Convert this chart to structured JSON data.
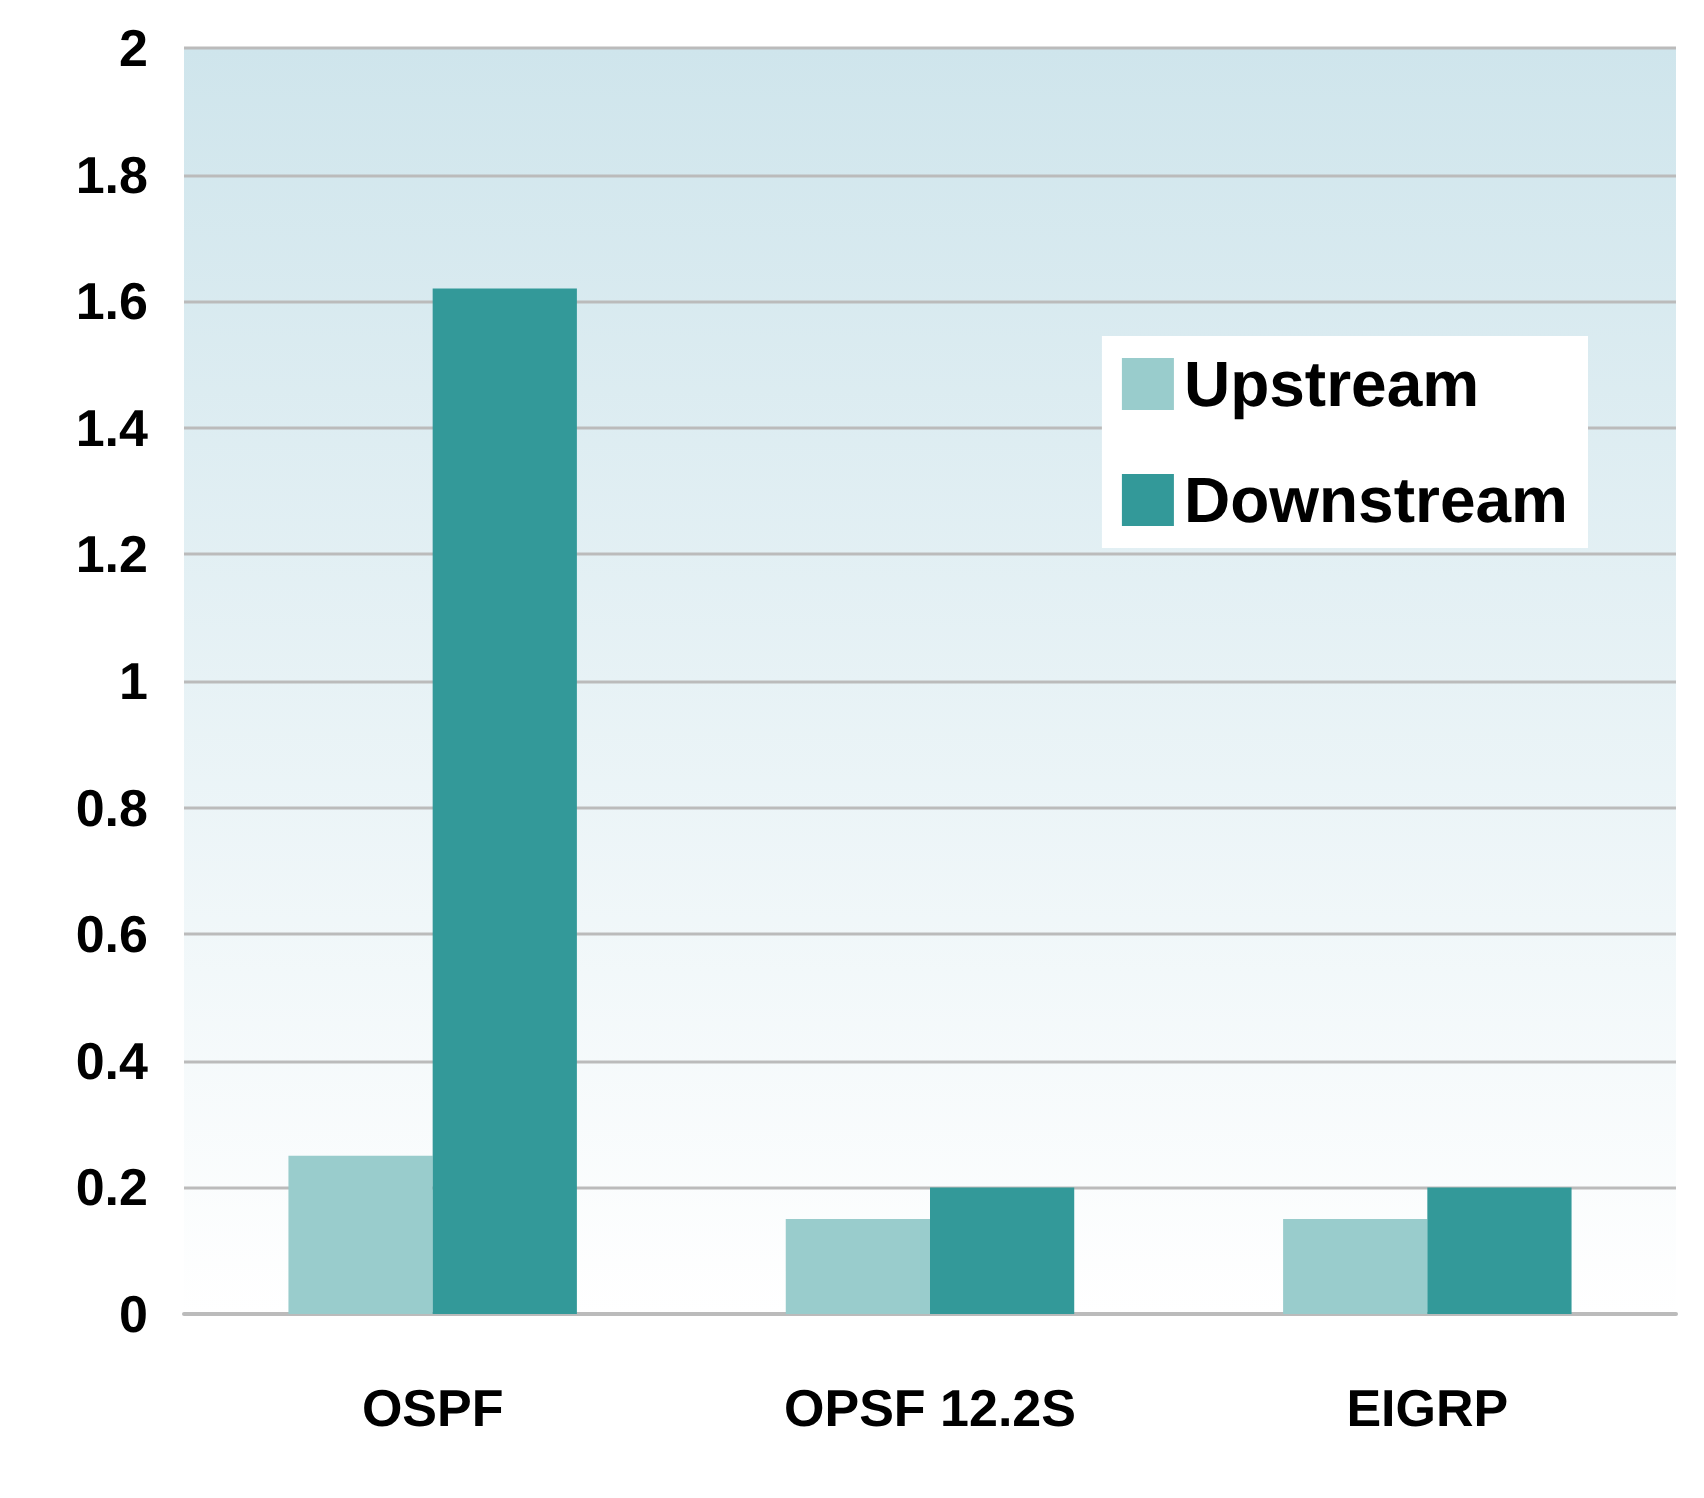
{
  "chart_data": {
    "type": "bar",
    "categories": [
      "OSPF",
      "OPSF 12.2S",
      "EIGRP"
    ],
    "series": [
      {
        "name": "Upstream",
        "color": "#99cccc",
        "values": [
          0.25,
          0.15,
          0.15
        ]
      },
      {
        "name": "Downstream",
        "color": "#339999",
        "values": [
          1.62,
          0.2,
          0.2
        ]
      }
    ],
    "ylim": [
      0,
      2
    ],
    "yticks": [
      0,
      0.2,
      0.4,
      0.6,
      0.8,
      1,
      1.2,
      1.4,
      1.6,
      1.8,
      2
    ],
    "grid": "y",
    "legend": "top right"
  }
}
